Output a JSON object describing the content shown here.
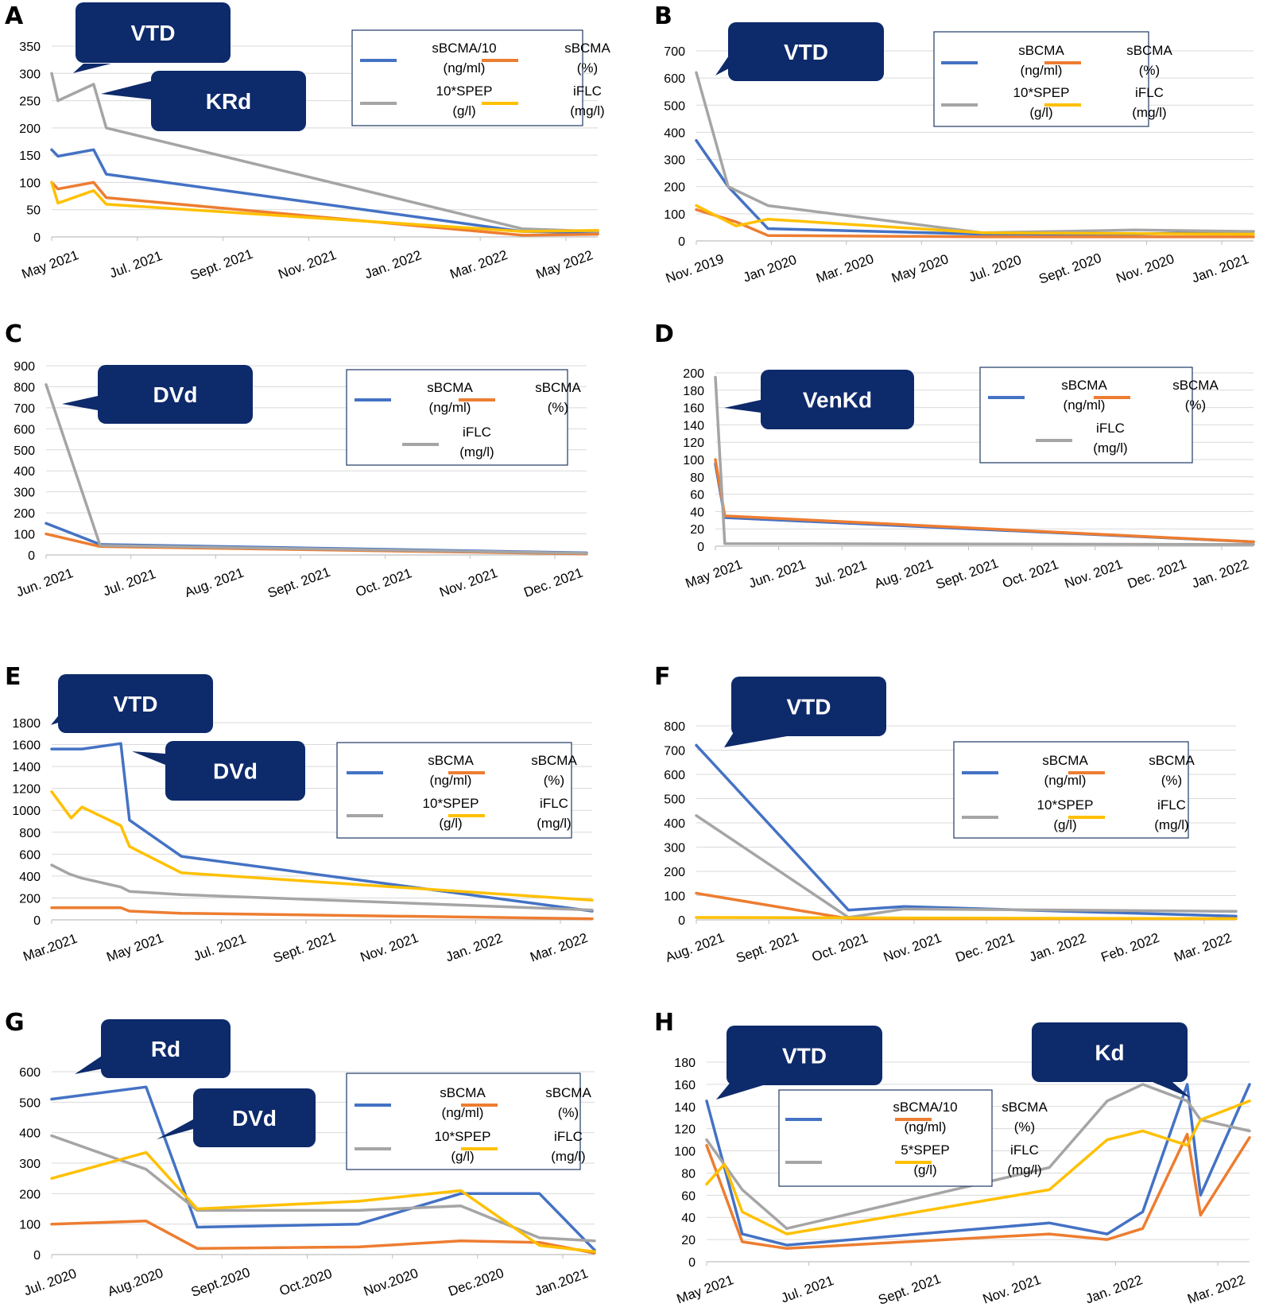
{
  "colors": {
    "blue": "#4472C4",
    "orange": "#ED7D31",
    "gray": "#A5A5A5",
    "yellow": "#FFC000",
    "callout": "#0D2A6B"
  },
  "chart_data": [
    {
      "panel": "A",
      "type": "line",
      "ylim": [
        0,
        350
      ],
      "yticks": [
        0,
        50,
        100,
        150,
        200,
        250,
        300,
        350
      ],
      "xticks": [
        "May 2021",
        "Jul. 2021",
        "Sept. 2021",
        "Nov. 2021",
        "Jan. 2022",
        "Mar. 2022",
        "May 2022"
      ],
      "xrange": [
        0,
        13
      ],
      "annotations": [
        "VTD",
        "KRd"
      ],
      "series": [
        {
          "label_top": "sBCMA/10",
          "label_bottom": "(ng/ml)",
          "color": "blue",
          "points": [
            [
              0,
              160
            ],
            [
              0.15,
              148
            ],
            [
              1,
              160
            ],
            [
              1.3,
              115
            ],
            [
              11.2,
              10
            ],
            [
              13,
              8
            ]
          ]
        },
        {
          "label_top": "sBCMA",
          "label_bottom": "(%)",
          "color": "orange",
          "points": [
            [
              0,
              100
            ],
            [
              0.15,
              88
            ],
            [
              1,
              100
            ],
            [
              1.3,
              72
            ],
            [
              11.2,
              3
            ],
            [
              13,
              5
            ]
          ]
        },
        {
          "label_top": "10*SPEP",
          "label_bottom": "(g/l)",
          "color": "gray",
          "points": [
            [
              0,
              300
            ],
            [
              0.15,
              250
            ],
            [
              1,
              280
            ],
            [
              1.3,
              200
            ],
            [
              11.2,
              15
            ],
            [
              13,
              10
            ]
          ]
        },
        {
          "label_top": "iFLC",
          "label_bottom": "(mg/l)",
          "color": "yellow",
          "points": [
            [
              0,
              100
            ],
            [
              0.15,
              62
            ],
            [
              1,
              85
            ],
            [
              1.3,
              60
            ],
            [
              11.2,
              10
            ],
            [
              13,
              12
            ]
          ]
        }
      ]
    },
    {
      "panel": "B",
      "type": "line",
      "ylim": [
        0,
        700
      ],
      "yticks": [
        0,
        100,
        200,
        300,
        400,
        500,
        600,
        700
      ],
      "xticks": [
        "Nov. 2019",
        "Jan 2020",
        "Mar. 2020",
        "May 2020",
        "Jul. 2020",
        "Sept. 2020",
        "Nov. 2020",
        "Jan. 2021"
      ],
      "xrange": [
        0,
        14
      ],
      "annotations": [
        "VTD"
      ],
      "series": [
        {
          "label_top": "sBCMA",
          "label_bottom": "(ng/ml)",
          "color": "blue",
          "points": [
            [
              0,
              370
            ],
            [
              0.8,
              200
            ],
            [
              1.8,
              45
            ],
            [
              7.2,
              25
            ],
            [
              11,
              25
            ],
            [
              14,
              35
            ]
          ]
        },
        {
          "label_top": "sBCMA",
          "label_bottom": "(%)",
          "color": "orange",
          "points": [
            [
              0,
              115
            ],
            [
              1,
              70
            ],
            [
              1.8,
              20
            ],
            [
              7.2,
              15
            ],
            [
              14,
              15
            ]
          ]
        },
        {
          "label_top": "10*SPEP",
          "label_bottom": "(g/l)",
          "color": "gray",
          "points": [
            [
              0,
              620
            ],
            [
              0.8,
              200
            ],
            [
              1.8,
              130
            ],
            [
              7.2,
              30
            ],
            [
              11,
              40
            ],
            [
              14,
              35
            ]
          ]
        },
        {
          "label_top": "iFLC",
          "label_bottom": "(mg/l)",
          "color": "yellow",
          "points": [
            [
              0,
              130
            ],
            [
              1,
              55
            ],
            [
              1.8,
              80
            ],
            [
              7.2,
              30
            ],
            [
              14,
              25
            ]
          ]
        }
      ]
    },
    {
      "panel": "C",
      "type": "line",
      "ylim": [
        0,
        900
      ],
      "yticks": [
        0,
        100,
        200,
        300,
        400,
        500,
        600,
        700,
        800,
        900
      ],
      "xticks": [
        "Jun. 2021",
        "Jul. 2021",
        "Aug. 2021",
        "Sept. 2021",
        "Oct. 2021",
        "Nov. 2021",
        "Dec. 2021"
      ],
      "xrange": [
        0,
        6.5
      ],
      "annotations": [
        "DVd"
      ],
      "series": [
        {
          "label_top": "sBCMA",
          "label_bottom": "(ng/ml)",
          "color": "blue",
          "points": [
            [
              0,
              150
            ],
            [
              0.65,
              50
            ],
            [
              6.5,
              10
            ]
          ]
        },
        {
          "label_top": "sBCMA",
          "label_bottom": "(%)",
          "color": "orange",
          "points": [
            [
              0,
              100
            ],
            [
              0.65,
              40
            ],
            [
              6.5,
              5
            ]
          ]
        },
        {
          "label_top": "iFLC",
          "label_bottom": "(mg/l)",
          "color": "gray",
          "points": [
            [
              0,
              810
            ],
            [
              0.65,
              45
            ],
            [
              6.5,
              8
            ]
          ]
        }
      ]
    },
    {
      "panel": "D",
      "type": "line",
      "ylim": [
        0,
        200
      ],
      "yticks": [
        0,
        20,
        40,
        60,
        80,
        100,
        120,
        140,
        160,
        180,
        200
      ],
      "xticks": [
        "May 2021",
        "Jun. 2021",
        "Jul. 2021",
        "Aug. 2021",
        "Sept. 2021",
        "Oct. 2021",
        "Nov. 2021",
        "Dec. 2021",
        "Jan. 2022"
      ],
      "xrange": [
        0,
        8.6
      ],
      "annotations": [
        "VenKd"
      ],
      "series": [
        {
          "label_top": "sBCMA",
          "label_bottom": "(ng/ml)",
          "color": "blue",
          "points": [
            [
              0,
              95
            ],
            [
              0.15,
              33
            ],
            [
              8.6,
              5
            ]
          ]
        },
        {
          "label_top": "sBCMA",
          "label_bottom": "(%)",
          "color": "orange",
          "points": [
            [
              0,
              100
            ],
            [
              0.15,
              35
            ],
            [
              8.6,
              5
            ]
          ]
        },
        {
          "label_top": "iFLC",
          "label_bottom": "(mg/l)",
          "color": "gray",
          "points": [
            [
              0,
              195
            ],
            [
              0.15,
              3
            ],
            [
              8.6,
              2
            ]
          ]
        }
      ]
    },
    {
      "panel": "E",
      "type": "line",
      "ylim": [
        0,
        1800
      ],
      "yticks": [
        0,
        200,
        400,
        600,
        800,
        1000,
        1200,
        1400,
        1600,
        1800
      ],
      "xticks": [
        "Mar.2021",
        "May 2021",
        "Jul. 2021",
        "Sept. 2021",
        "Nov. 2021",
        "Jan. 2022",
        "Mar. 2022"
      ],
      "xrange": [
        0,
        12.5
      ],
      "annotations": [
        "VTD",
        "DVd"
      ],
      "series": [
        {
          "label_top": "sBCMA",
          "label_bottom": "(ng/ml)",
          "color": "blue",
          "points": [
            [
              0,
              1560
            ],
            [
              0.7,
              1560
            ],
            [
              1.6,
              1610
            ],
            [
              1.8,
              910
            ],
            [
              3,
              580
            ],
            [
              12.5,
              80
            ]
          ]
        },
        {
          "label_top": "sBCMA",
          "label_bottom": "(%)",
          "color": "orange",
          "points": [
            [
              0,
              110
            ],
            [
              1.6,
              110
            ],
            [
              1.8,
              80
            ],
            [
              3,
              60
            ],
            [
              12.5,
              10
            ]
          ]
        },
        {
          "label_top": "10*SPEP",
          "label_bottom": "(g/l)",
          "color": "gray",
          "points": [
            [
              0,
              500
            ],
            [
              0.4,
              420
            ],
            [
              0.7,
              380
            ],
            [
              1.6,
              300
            ],
            [
              1.8,
              260
            ],
            [
              3,
              230
            ],
            [
              12.5,
              90
            ]
          ]
        },
        {
          "label_top": "iFLC",
          "label_bottom": "(mg/l)",
          "color": "yellow",
          "points": [
            [
              0,
              1170
            ],
            [
              0.45,
              930
            ],
            [
              0.7,
              1030
            ],
            [
              1.6,
              860
            ],
            [
              1.8,
              670
            ],
            [
              3,
              430
            ],
            [
              12.5,
              180
            ]
          ]
        }
      ]
    },
    {
      "panel": "F",
      "type": "line",
      "ylim": [
        0,
        800
      ],
      "yticks": [
        0,
        100,
        200,
        300,
        400,
        500,
        600,
        700,
        800
      ],
      "xticks": [
        "Aug. 2021",
        "Sept. 2021",
        "Oct. 2021",
        "Nov. 2021",
        "Dec. 2021",
        "Jan. 2022",
        "Feb. 2022",
        "Mar. 2022"
      ],
      "xrange": [
        0,
        7.8
      ],
      "annotations": [
        "VTD"
      ],
      "series": [
        {
          "label_top": "sBCMA",
          "label_bottom": "(ng/ml)",
          "color": "blue",
          "points": [
            [
              0,
              720
            ],
            [
              2.2,
              40
            ],
            [
              3,
              55
            ],
            [
              7.8,
              15
            ]
          ]
        },
        {
          "label_top": "sBCMA",
          "label_bottom": "(%)",
          "color": "orange",
          "points": [
            [
              0,
              110
            ],
            [
              2.2,
              5
            ],
            [
              7.8,
              5
            ]
          ]
        },
        {
          "label_top": "10*SPEP",
          "label_bottom": "(g/l)",
          "color": "gray",
          "points": [
            [
              0,
              430
            ],
            [
              2.2,
              10
            ],
            [
              3,
              45
            ],
            [
              7.8,
              35
            ]
          ]
        },
        {
          "label_top": "iFLC",
          "label_bottom": "(mg/l)",
          "color": "yellow",
          "points": [
            [
              0,
              10
            ],
            [
              7.8,
              5
            ]
          ]
        }
      ]
    },
    {
      "panel": "G",
      "type": "line",
      "ylim": [
        0,
        600
      ],
      "yticks": [
        0,
        100,
        200,
        300,
        400,
        500,
        600
      ],
      "xticks": [
        "Jul. 2020",
        "Aug.2020",
        "Sept.2020",
        "Oct.2020",
        "Nov.2020",
        "Dec.2020",
        "Jan.2021"
      ],
      "xrange": [
        0,
        6.9
      ],
      "annotations": [
        "Rd",
        "DVd"
      ],
      "series": [
        {
          "label_top": "sBCMA",
          "label_bottom": "(ng/ml)",
          "color": "blue",
          "points": [
            [
              0,
              510
            ],
            [
              1.2,
              550
            ],
            [
              1.85,
              90
            ],
            [
              3.9,
              100
            ],
            [
              5.2,
              200
            ],
            [
              6.2,
              200
            ],
            [
              6.9,
              15
            ]
          ]
        },
        {
          "label_top": "sBCMA",
          "label_bottom": "(%)",
          "color": "orange",
          "points": [
            [
              0,
              100
            ],
            [
              1.2,
              110
            ],
            [
              1.85,
              20
            ],
            [
              3.9,
              25
            ],
            [
              5.2,
              45
            ],
            [
              6.2,
              40
            ],
            [
              6.9,
              5
            ]
          ]
        },
        {
          "label_top": "10*SPEP",
          "label_bottom": "(g/l)",
          "color": "gray",
          "points": [
            [
              0,
              390
            ],
            [
              1.2,
              280
            ],
            [
              1.85,
              145
            ],
            [
              3.9,
              145
            ],
            [
              5.2,
              160
            ],
            [
              6.2,
              55
            ],
            [
              6.9,
              45
            ]
          ]
        },
        {
          "label_top": "iFLC",
          "label_bottom": "(mg/l)",
          "color": "yellow",
          "points": [
            [
              0,
              250
            ],
            [
              1.2,
              335
            ],
            [
              1.85,
              150
            ],
            [
              3.9,
              175
            ],
            [
              5.2,
              210
            ],
            [
              6.2,
              30
            ],
            [
              6.9,
              10
            ]
          ]
        }
      ]
    },
    {
      "panel": "H",
      "type": "line",
      "ylim": [
        0,
        180
      ],
      "yticks": [
        0,
        20,
        40,
        60,
        80,
        100,
        120,
        140,
        160,
        180
      ],
      "xticks": [
        "May 2021",
        "Jul. 2021",
        "Sept. 2021",
        "Nov. 2021",
        "Jan. 2022",
        "Mar. 2022"
      ],
      "xrange": [
        0,
        12.2
      ],
      "annotations": [
        "VTD",
        "Kd"
      ],
      "series": [
        {
          "label_top": "sBCMA/10",
          "label_bottom": "(ng/ml)",
          "color": "blue",
          "points": [
            [
              0,
              145
            ],
            [
              0.8,
              25
            ],
            [
              1.8,
              15
            ],
            [
              7.7,
              35
            ],
            [
              9,
              25
            ],
            [
              9.8,
              45
            ],
            [
              10.8,
              160
            ],
            [
              11.1,
              60
            ],
            [
              12.2,
              160
            ]
          ]
        },
        {
          "label_top": "sBCMA",
          "label_bottom": "(%)",
          "color": "orange",
          "points": [
            [
              0,
              105
            ],
            [
              0.8,
              18
            ],
            [
              1.8,
              12
            ],
            [
              7.7,
              25
            ],
            [
              9,
              20
            ],
            [
              9.8,
              30
            ],
            [
              10.8,
              115
            ],
            [
              11.1,
              42
            ],
            [
              12.2,
              112
            ]
          ]
        },
        {
          "label_top": "5*SPEP",
          "label_bottom": "(g/l)",
          "color": "gray",
          "points": [
            [
              0,
              110
            ],
            [
              0.8,
              65
            ],
            [
              1.8,
              30
            ],
            [
              7.7,
              85
            ],
            [
              9,
              145
            ],
            [
              9.8,
              160
            ],
            [
              10.8,
              145
            ],
            [
              11.1,
              128
            ],
            [
              12.2,
              118
            ]
          ]
        },
        {
          "label_top": "iFLC",
          "label_bottom": "(mg/l)",
          "color": "yellow",
          "points": [
            [
              0,
              70
            ],
            [
              0.4,
              88
            ],
            [
              0.8,
              45
            ],
            [
              1.8,
              25
            ],
            [
              7.7,
              65
            ],
            [
              9,
              110
            ],
            [
              9.8,
              118
            ],
            [
              10.8,
              105
            ],
            [
              11.1,
              128
            ],
            [
              12.2,
              145
            ]
          ]
        }
      ]
    }
  ]
}
